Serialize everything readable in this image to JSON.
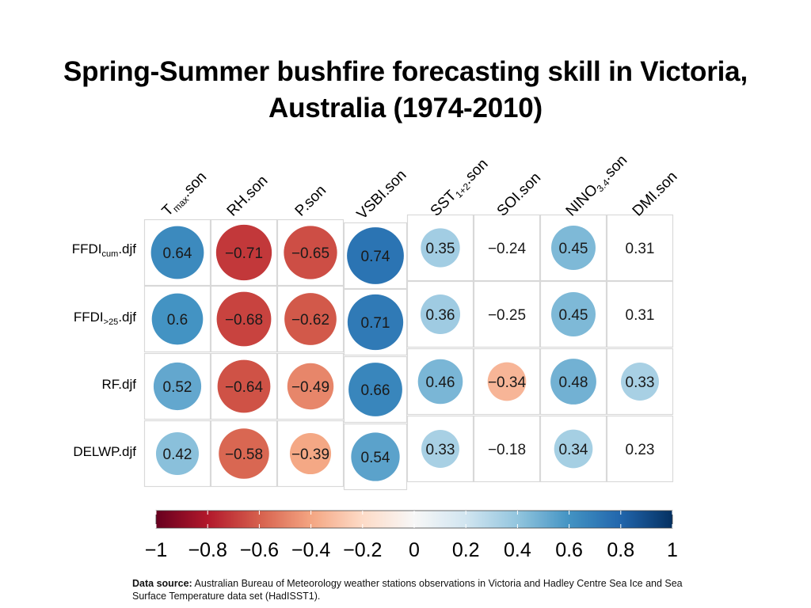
{
  "slide": {
    "title_line1": "Spring-Summer bushfire forecasting skill in Victoria,",
    "title_line2": "Australia (1974-2010)"
  },
  "footer": {
    "source_label": "Data source:",
    "source_text": "Australian Bureau of Meteorology weather stations observations in Victoria and Hadley Centre Sea Ice and Sea Surface Temperature data set (HadISST1)."
  },
  "colors": {
    "strong_negative": "#67001f",
    "negative": "#d6604d",
    "neutral": "#f7f7f7",
    "positive": "#4393c3",
    "strong_positive": "#053061",
    "grid_line": "#d9d9d9"
  },
  "chart_data": {
    "type": "heatmap",
    "title": "Spring-Summer bushfire forecasting skill in Victoria, Australia (1974-2010)",
    "columns": [
      {
        "base": "T",
        "sub": "max",
        "suffix": ".son"
      },
      {
        "base": "RH.son",
        "sub": "",
        "suffix": ""
      },
      {
        "base": "P.son",
        "sub": "",
        "suffix": ""
      },
      {
        "base": "VSBI.son",
        "sub": "",
        "suffix": ""
      },
      {
        "base": "SST",
        "sub": "1+2",
        "suffix": ".son"
      },
      {
        "base": "SOI.son",
        "sub": "",
        "suffix": ""
      },
      {
        "base": "NINO",
        "sub": "3.4",
        "suffix": ".son"
      },
      {
        "base": "DMI.son",
        "sub": "",
        "suffix": ""
      }
    ],
    "rows": [
      {
        "base": "FFDI",
        "sub": "cum",
        "suffix": ".djf"
      },
      {
        "base": "FFDI",
        "sub": ">25",
        "suffix": ".djf"
      },
      {
        "base": "RF.djf",
        "sub": "",
        "suffix": ""
      },
      {
        "base": "DELWP.djf",
        "sub": "",
        "suffix": ""
      }
    ],
    "values": [
      [
        0.64,
        -0.71,
        -0.65,
        0.74,
        0.35,
        -0.24,
        0.45,
        0.31
      ],
      [
        0.6,
        -0.68,
        -0.62,
        0.71,
        0.36,
        -0.25,
        0.45,
        0.31
      ],
      [
        0.52,
        -0.64,
        -0.49,
        0.66,
        0.46,
        -0.34,
        0.48,
        0.33
      ],
      [
        0.42,
        -0.58,
        -0.39,
        0.54,
        0.33,
        -0.18,
        0.34,
        0.23
      ]
    ],
    "value_labels": [
      [
        "0.64",
        "−0.71",
        "−0.65",
        "0.74",
        "0.35",
        "−0.24",
        "0.45",
        "0.31"
      ],
      [
        "0.6",
        "−0.68",
        "−0.62",
        "0.71",
        "0.36",
        "−0.25",
        "0.45",
        "0.31"
      ],
      [
        "0.52",
        "−0.64",
        "−0.49",
        "0.66",
        "0.46",
        "−0.34",
        "0.48",
        "0.33"
      ],
      [
        "0.42",
        "−0.58",
        "−0.39",
        "0.54",
        "0.33",
        "−0.18",
        "0.34",
        "0.23"
      ]
    ],
    "significant": [
      [
        true,
        true,
        true,
        true,
        true,
        false,
        true,
        false
      ],
      [
        true,
        true,
        true,
        true,
        true,
        false,
        true,
        false
      ],
      [
        true,
        true,
        true,
        true,
        true,
        true,
        true,
        true
      ],
      [
        true,
        true,
        true,
        true,
        true,
        false,
        true,
        false
      ]
    ],
    "colorbar": {
      "range": [
        -1,
        1
      ],
      "ticks": [
        -1,
        -0.8,
        -0.6,
        -0.4,
        -0.2,
        0,
        0.2,
        0.4,
        0.6,
        0.8,
        1
      ],
      "tick_labels": [
        "−1",
        "−0.8",
        "−0.6",
        "−0.4",
        "−0.2",
        "0",
        "0.2",
        "0.4",
        "0.6",
        "0.8",
        "1"
      ],
      "placement": "bottom"
    },
    "grid": true
  }
}
